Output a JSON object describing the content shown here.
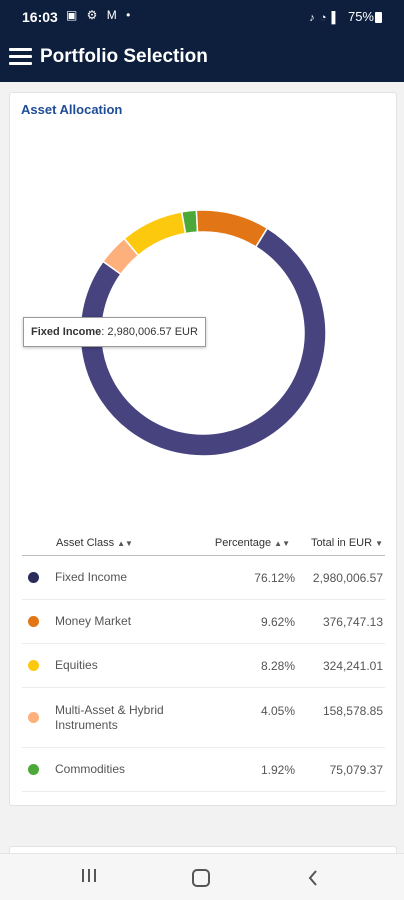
{
  "status_bar": {
    "time": "16:03",
    "icons": "▣ ⚙ M •",
    "right_glyphs": "♪ ◔ ▌",
    "battery": "75%"
  },
  "app_bar": {
    "title": "Portfolio Selection"
  },
  "section": {
    "title": "Asset Allocation"
  },
  "tooltip": {
    "label": "Fixed Income",
    "value": ": 2,980,006.57 EUR"
  },
  "table": {
    "columns": {
      "asset_class": "Asset Class",
      "percentage": "Percentage",
      "total": "Total in EUR"
    },
    "sort_arrows": {
      "asset_class": "▲▼",
      "percentage": "▲▼",
      "total": "▼"
    }
  },
  "chart_data": {
    "type": "pie",
    "title": "",
    "categories": [
      "Fixed Income",
      "Money Market",
      "Equities",
      "Multi-Asset & Hybrid Instruments",
      "Commodities"
    ],
    "values": [
      76.12,
      9.62,
      8.28,
      4.05,
      1.92
    ],
    "totals_eur": [
      2980006.57,
      376747.13,
      324241.01,
      158578.85,
      75079.37
    ],
    "colors": [
      "#46437f",
      "#e27617",
      "#fdc90e",
      "#fdb07c",
      "#4da83a"
    ],
    "start_order": [
      4,
      1,
      0,
      3,
      2
    ]
  },
  "rows": [
    {
      "name": "Fixed Income",
      "pct": "76.12%",
      "total": "2,980,006.57",
      "color": "#2b2a5c"
    },
    {
      "name": "Money Market",
      "pct": "9.62%",
      "total": "376,747.13",
      "color": "#e27617"
    },
    {
      "name": "Equities",
      "pct": "8.28%",
      "total": "324,241.01",
      "color": "#fdc90e"
    },
    {
      "name": "Multi-Asset & Hybrid\nInstruments",
      "pct": "4.05%",
      "total": "158,578.85",
      "color": "#fdb07c"
    },
    {
      "name": "Commodities",
      "pct": "1.92%",
      "total": "75,079.37",
      "color": "#4da83a"
    }
  ]
}
